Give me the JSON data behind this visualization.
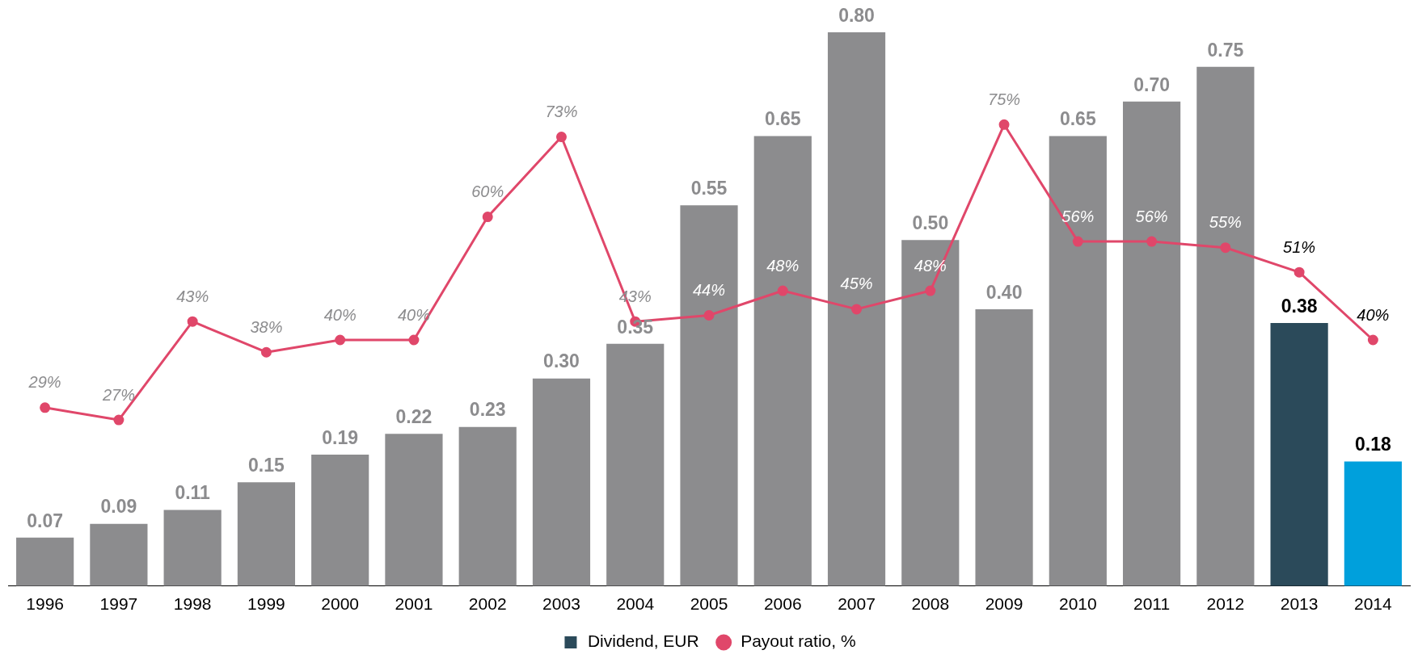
{
  "chart_data": {
    "type": "bar",
    "categories": [
      "1996",
      "1997",
      "1998",
      "1999",
      "2000",
      "2001",
      "2002",
      "2003",
      "2004",
      "2005",
      "2006",
      "2007",
      "2008",
      "2009",
      "2010",
      "2011",
      "2012",
      "2013",
      "2014"
    ],
    "series": [
      {
        "name": "Dividend, EUR",
        "color": "#2b4a5a",
        "colors": [
          "#8c8c8e",
          "#8c8c8e",
          "#8c8c8e",
          "#8c8c8e",
          "#8c8c8e",
          "#8c8c8e",
          "#8c8c8e",
          "#8c8c8e",
          "#8c8c8e",
          "#8c8c8e",
          "#8c8c8e",
          "#8c8c8e",
          "#8c8c8e",
          "#8c8c8e",
          "#8c8c8e",
          "#8c8c8e",
          "#8c8c8e",
          "#2b4a5a",
          "#00a0dc"
        ],
        "values": [
          0.07,
          0.09,
          0.11,
          0.15,
          0.19,
          0.22,
          0.23,
          0.3,
          0.35,
          0.55,
          0.65,
          0.8,
          0.5,
          0.4,
          0.65,
          0.7,
          0.75,
          0.38,
          0.18
        ],
        "value_labels": [
          "0.07",
          "0.09",
          "0.11",
          "0.15",
          "0.19",
          "0.22",
          "0.23",
          "0.30",
          "0.35",
          "0.55",
          "0.65",
          "0.80",
          "0.50",
          "0.40",
          "0.65",
          "0.70",
          "0.75",
          "0.38",
          "0.18"
        ]
      },
      {
        "name": "Payout ratio, %",
        "type": "line",
        "axis": "y2",
        "color": "#e0476a",
        "values": [
          29,
          27,
          43,
          38,
          40,
          40,
          60,
          73,
          43,
          44,
          48,
          45,
          48,
          75,
          56,
          56,
          55,
          51,
          40
        ],
        "value_labels": [
          "29%",
          "27%",
          "43%",
          "38%",
          "40%",
          "40%",
          "60%",
          "73%",
          "43%",
          "44%",
          "48%",
          "45%",
          "48%",
          "75%",
          "56%",
          "56%",
          "55%",
          "51%",
          "40%"
        ]
      }
    ],
    "marker": "circle",
    "legend": "bottom",
    "grid": false
  }
}
